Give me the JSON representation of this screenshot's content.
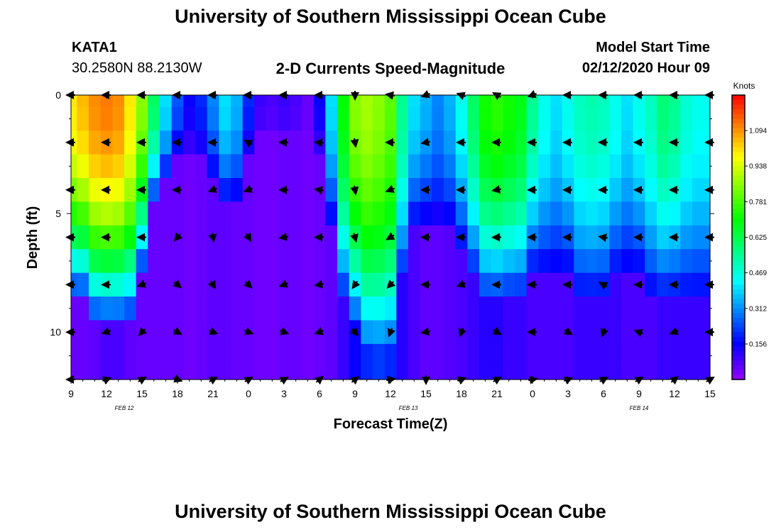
{
  "header": {
    "title": "University of Southern Mississippi Ocean Cube",
    "station": "KATA1",
    "coords": "30.2580N 88.2130W",
    "subtitle": "2-D Currents Speed-Magnitude",
    "model_start_label": "Model Start Time",
    "model_start_value": "02/12/2020 Hour 09"
  },
  "footer": {
    "title": "University of Southern Mississippi Ocean Cube"
  },
  "chart_data": {
    "type": "heatmap",
    "xlabel": "Forecast Time(Z)",
    "ylabel": "Depth (ft)",
    "x_range_hours": [
      0,
      54
    ],
    "y_range": [
      0,
      12
    ],
    "x_tick_labels": [
      "9",
      "12",
      "15",
      "18",
      "21",
      "0",
      "3",
      "6",
      "9",
      "12",
      "15",
      "18",
      "21",
      "0",
      "3",
      "6",
      "9",
      "12",
      "15"
    ],
    "y_tick_labels": [
      "0",
      "5",
      "10"
    ],
    "y_tick_values": [
      0,
      5,
      10
    ],
    "date_labels": [
      {
        "text": "FEB 12",
        "hour_offset": 4.5
      },
      {
        "text": "FEB 13",
        "hour_offset": 28.5
      },
      {
        "text": "FEB 14",
        "hour_offset": 48
      }
    ],
    "colorbar": {
      "unit": "Knots",
      "range": [
        0,
        1.25
      ],
      "tick_values": [
        1.094,
        0.938,
        0.781,
        0.625,
        0.469,
        0.312,
        0.156
      ],
      "tick_labels": [
        "1.094",
        "0.938",
        "0.781",
        "0.625",
        "0.469",
        "0.312",
        "0.156"
      ]
    },
    "depths_ft": [
      0,
      1,
      2,
      3,
      4,
      5,
      6,
      7,
      8,
      9,
      10,
      11,
      12
    ],
    "speed_profile": {
      "hours": [
        0,
        1,
        2,
        3,
        4,
        5,
        6,
        7,
        8,
        9,
        10,
        11,
        12,
        13,
        14,
        15,
        16,
        17,
        18,
        19,
        20,
        21,
        22,
        23,
        24,
        25,
        26,
        27,
        28,
        29,
        30,
        31,
        32,
        33,
        34,
        35,
        36,
        37,
        38,
        39,
        40,
        41,
        42,
        43,
        44,
        45,
        46,
        47,
        48,
        49,
        50,
        51,
        52,
        53,
        54
      ],
      "surface_knots": [
        1.0,
        1.05,
        1.1,
        1.12,
        1.1,
        1.0,
        0.85,
        0.6,
        0.4,
        0.25,
        0.15,
        0.2,
        0.3,
        0.4,
        0.35,
        0.2,
        0.1,
        0.08,
        0.1,
        0.08,
        0.05,
        0.15,
        0.4,
        0.7,
        0.85,
        0.88,
        0.85,
        0.8,
        0.55,
        0.4,
        0.35,
        0.3,
        0.35,
        0.45,
        0.6,
        0.72,
        0.75,
        0.72,
        0.68,
        0.55,
        0.45,
        0.4,
        0.45,
        0.5,
        0.52,
        0.5,
        0.45,
        0.4,
        0.45,
        0.5,
        0.58,
        0.55,
        0.48,
        0.45,
        0.45
      ],
      "bottom_knots": [
        0.05,
        0.05,
        0.06,
        0.08,
        0.08,
        0.06,
        0.05,
        0.05,
        0.05,
        0.05,
        0.04,
        0.05,
        0.06,
        0.06,
        0.05,
        0.05,
        0.04,
        0.04,
        0.05,
        0.05,
        0.04,
        0.05,
        0.06,
        0.1,
        0.15,
        0.2,
        0.22,
        0.2,
        0.12,
        0.08,
        0.06,
        0.06,
        0.07,
        0.08,
        0.1,
        0.12,
        0.12,
        0.1,
        0.1,
        0.08,
        0.08,
        0.08,
        0.08,
        0.1,
        0.1,
        0.1,
        0.1,
        0.08,
        0.08,
        0.08,
        0.1,
        0.1,
        0.1,
        0.1,
        0.1
      ],
      "penetration_depth_ft": [
        9,
        9,
        10,
        10,
        10,
        10,
        8,
        5,
        4,
        3,
        3,
        3,
        4,
        5,
        5,
        3,
        2,
        2,
        2,
        2,
        2,
        3,
        6,
        9,
        10,
        11,
        11,
        11,
        8,
        6,
        6,
        6,
        6,
        7,
        8,
        9,
        9,
        9,
        9,
        8,
        8,
        8,
        8,
        9,
        9,
        9,
        8,
        8,
        8,
        9,
        9,
        9,
        9,
        9,
        9
      ]
    },
    "vector_hour_offsets": [
      0,
      3,
      6,
      9,
      12,
      15,
      18,
      21,
      24,
      27,
      30,
      33,
      36,
      39,
      42,
      45,
      48,
      51,
      54
    ],
    "vector_depths_ft": [
      0,
      2,
      4,
      6,
      8,
      10,
      12
    ],
    "vector_directions_deg": [
      [
        180,
        180,
        180,
        180,
        180,
        180,
        180
      ],
      [
        180,
        180,
        180,
        180,
        180,
        200,
        20
      ],
      [
        180,
        180,
        180,
        180,
        200,
        225,
        30
      ],
      [
        180,
        180,
        180,
        230,
        320,
        330,
        340
      ],
      [
        180,
        180,
        200,
        280,
        300,
        340,
        30
      ],
      [
        180,
        150,
        200,
        300,
        315,
        340,
        30
      ],
      [
        180,
        180,
        180,
        190,
        200,
        340,
        30
      ],
      [
        180,
        175,
        170,
        180,
        190,
        200,
        40
      ],
      [
        270,
        280,
        280,
        285,
        235,
        310,
        40
      ],
      [
        170,
        180,
        200,
        210,
        225,
        250,
        10
      ],
      [
        200,
        190,
        180,
        180,
        180,
        190,
        270
      ],
      [
        160,
        180,
        180,
        180,
        200,
        250,
        20
      ],
      [
        150,
        180,
        190,
        180,
        180,
        330,
        30
      ],
      [
        200,
        180,
        180,
        180,
        180,
        180,
        10
      ],
      [
        180,
        180,
        180,
        180,
        180,
        330,
        20
      ],
      [
        180,
        180,
        180,
        170,
        150,
        250,
        30
      ],
      [
        180,
        180,
        180,
        180,
        180,
        160,
        30
      ],
      [
        180,
        180,
        180,
        180,
        180,
        200,
        40
      ],
      [
        180,
        180,
        180,
        180,
        180,
        180,
        30
      ]
    ]
  }
}
